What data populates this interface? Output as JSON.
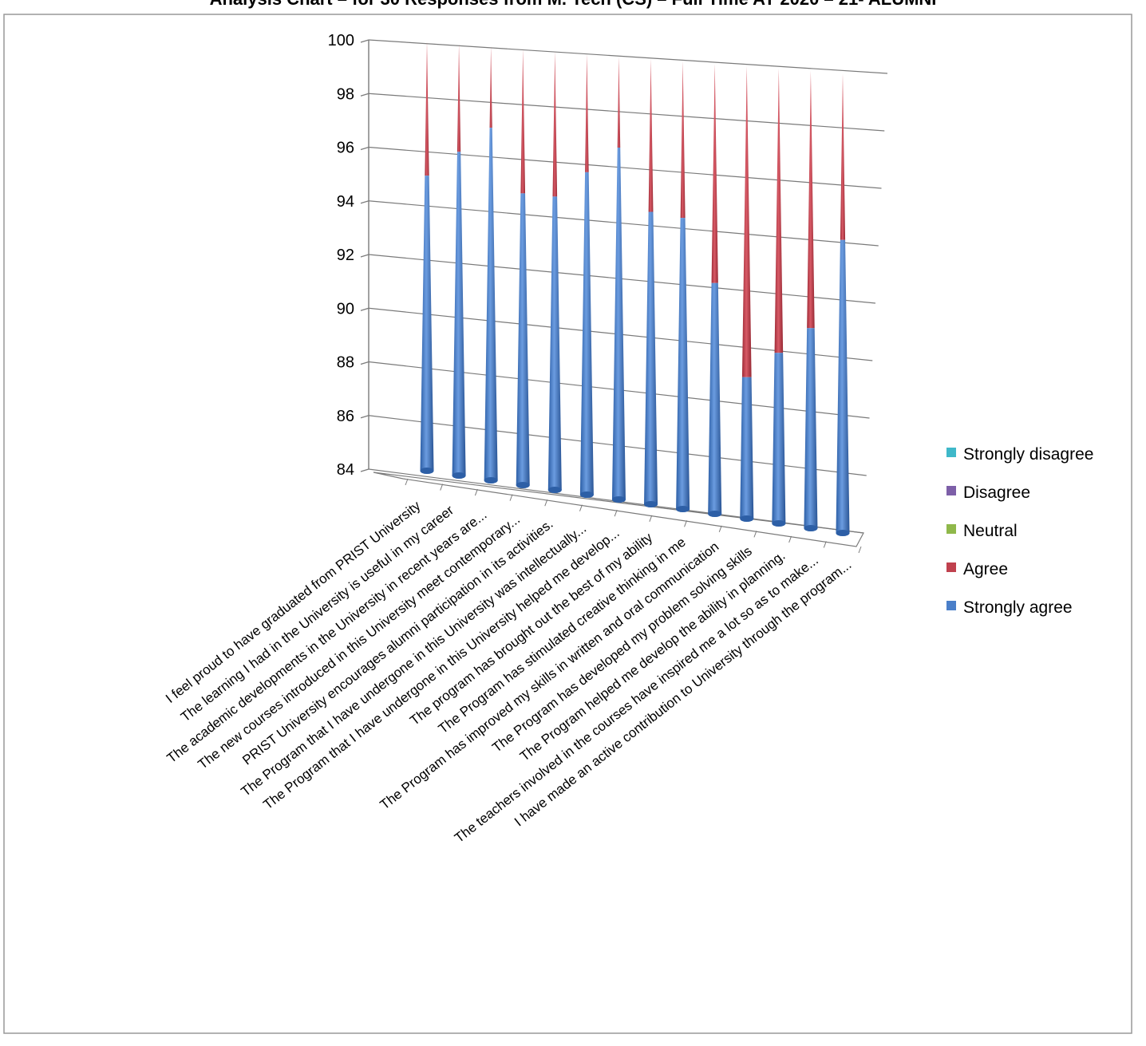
{
  "chart_data": {
    "type": "bar",
    "title": "Analysis Chart – for 30 Responses from M. Tech (CS) – Full Time AY 2020 – 21- ALUMNI",
    "ylim": [
      84,
      100
    ],
    "yticks": [
      "100",
      "98",
      "96",
      "94",
      "92",
      "90",
      "88",
      "86",
      "84"
    ],
    "categories": [
      "I feel proud to have graduated from PRIST University",
      "The learning I had in the University is useful in my career",
      "The academic developments in the University in recent years are...",
      "The new courses introduced in this University meet contemporary...",
      "PRIST University encourages alumni participation in its activities.",
      "The Program that I have undergone in this University was intellectually...",
      "The Program that I have undergone in this University helped me develop...",
      "The program has brought out the best of my ability",
      "The Program has stimulated creative thinking in me",
      "The Program has improved my skills in written and oral communication",
      "The Program has developed my problem solving skills",
      "The Program helped me develop the ability in planning.",
      "The teachers involved in the courses have inspired me a lot so as to make...",
      "I have made an active contribution to University through the program..."
    ],
    "series": [
      {
        "name": "Strongly agree",
        "color": "#4a7fc9",
        "values": [
          95,
          96,
          97,
          94.7,
          94.7,
          95.7,
          96.7,
          94.5,
          94.4,
          92.2,
          89,
          90,
          91,
          94.2
        ]
      },
      {
        "name": "Agree",
        "color": "#c0414e",
        "values": [
          5,
          4,
          3,
          5.3,
          5.3,
          4.3,
          3.3,
          5.5,
          5.6,
          7.8,
          11,
          10,
          9,
          5.8
        ]
      },
      {
        "name": "Neutral",
        "color": "#8fb84a",
        "values": [
          0,
          0,
          0,
          0,
          0,
          0,
          0,
          0,
          0,
          0,
          0,
          0,
          0,
          0
        ]
      },
      {
        "name": "Disagree",
        "color": "#7d5fa8",
        "values": [
          0,
          0,
          0,
          0,
          0,
          0,
          0,
          0,
          0,
          0,
          0,
          0,
          0,
          0
        ]
      },
      {
        "name": "Strongly disagree",
        "color": "#3fb8c9",
        "values": [
          0,
          0,
          0,
          0,
          0,
          0,
          0,
          0,
          0,
          0,
          0,
          0,
          0,
          0
        ]
      }
    ],
    "legend": [
      "Strongly disagree",
      "Disagree",
      "Neutral",
      "Agree",
      "Strongly agree"
    ],
    "legend_position": "right",
    "grid": true
  }
}
